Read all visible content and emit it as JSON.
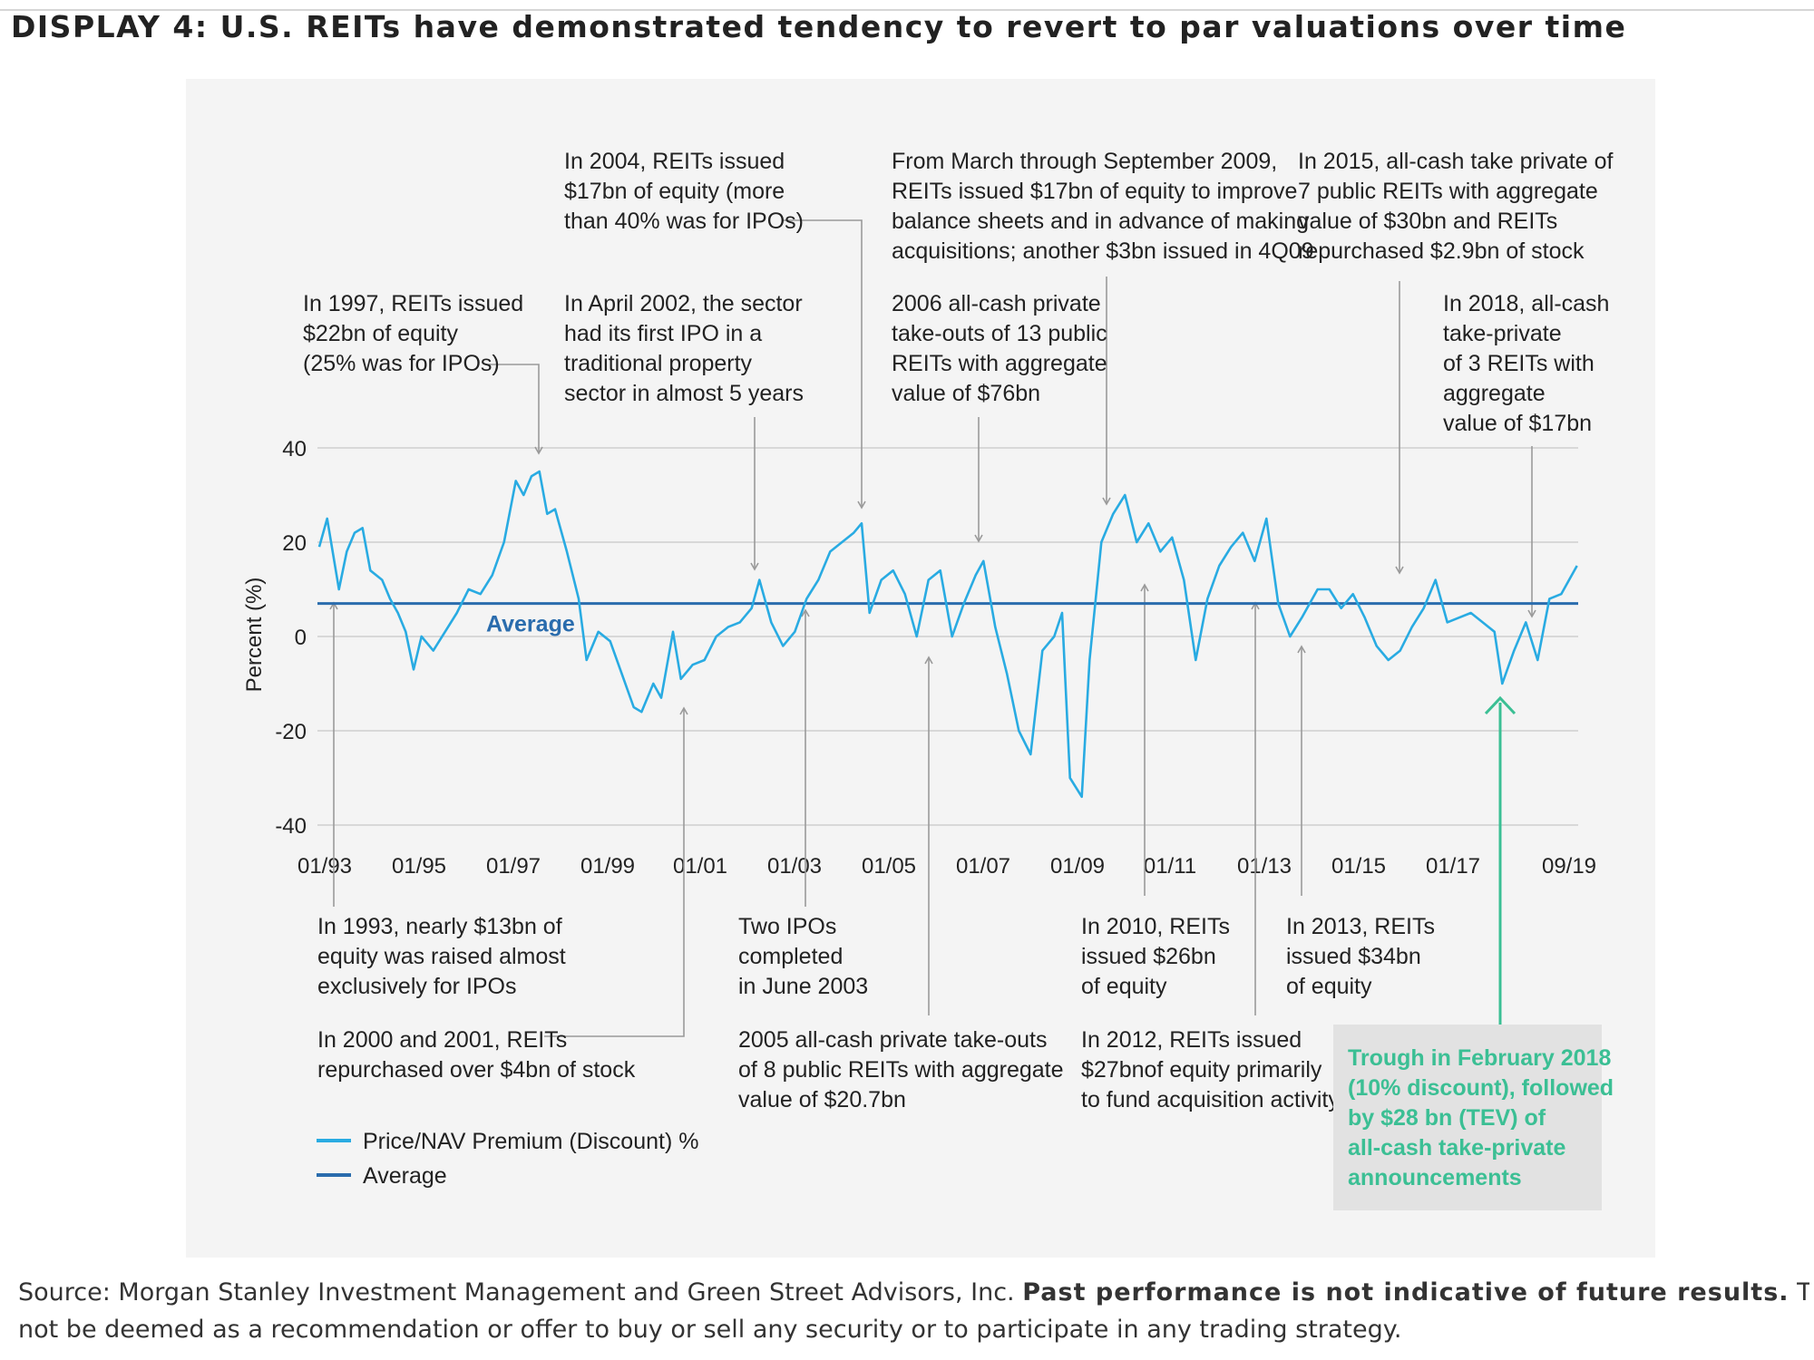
{
  "title": "DISPLAY 4: U.S. REITs have demonstrated tendency to revert to par valuations over time",
  "colors": {
    "series": "#29abe2",
    "average": "#2a6cad",
    "trough": "#3bbf94",
    "grid": "#cfcfcf",
    "panel": "#f4f4f4"
  },
  "chart_data": {
    "type": "line",
    "ylabel": "Percent (%)",
    "ylim": [
      -40,
      40
    ],
    "yticks": [
      "40",
      "20",
      "0",
      "-20",
      "-40"
    ],
    "xticks": [
      "01/93",
      "01/95",
      "01/97",
      "01/99",
      "01/01",
      "01/03",
      "01/05",
      "01/07",
      "01/09",
      "01/11",
      "01/13",
      "01/15",
      "01/17",
      "09/19"
    ],
    "average_value": 7,
    "average_label": "Average",
    "series": [
      {
        "name": "Price/NAV Premium (Discount) %",
        "color": "#29abe2",
        "points": [
          [
            "1993-01",
            19
          ],
          [
            "1993-03",
            25
          ],
          [
            "1993-06",
            10
          ],
          [
            "1993-08",
            18
          ],
          [
            "1993-10",
            22
          ],
          [
            "1993-12",
            23
          ],
          [
            "1994-02",
            14
          ],
          [
            "1994-05",
            12
          ],
          [
            "1994-07",
            8
          ],
          [
            "1994-09",
            5
          ],
          [
            "1994-11",
            1
          ],
          [
            "1995-01",
            -7
          ],
          [
            "1995-03",
            0
          ],
          [
            "1995-06",
            -3
          ],
          [
            "1995-09",
            1
          ],
          [
            "1995-12",
            5
          ],
          [
            "1996-03",
            10
          ],
          [
            "1996-06",
            9
          ],
          [
            "1996-09",
            13
          ],
          [
            "1996-12",
            20
          ],
          [
            "1997-03",
            33
          ],
          [
            "1997-05",
            30
          ],
          [
            "1997-07",
            34
          ],
          [
            "1997-09",
            35
          ],
          [
            "1997-11",
            26
          ],
          [
            "1998-01",
            27
          ],
          [
            "1998-04",
            18
          ],
          [
            "1998-07",
            8
          ],
          [
            "1998-09",
            -5
          ],
          [
            "1998-12",
            1
          ],
          [
            "1999-03",
            -1
          ],
          [
            "1999-06",
            -8
          ],
          [
            "1999-09",
            -15
          ],
          [
            "1999-11",
            -16
          ],
          [
            "2000-02",
            -10
          ],
          [
            "2000-04",
            -13
          ],
          [
            "2000-07",
            1
          ],
          [
            "2000-09",
            -9
          ],
          [
            "2000-12",
            -6
          ],
          [
            "2001-03",
            -5
          ],
          [
            "2001-06",
            0
          ],
          [
            "2001-09",
            2
          ],
          [
            "2001-12",
            3
          ],
          [
            "2002-03",
            6
          ],
          [
            "2002-05",
            12
          ],
          [
            "2002-08",
            3
          ],
          [
            "2002-11",
            -2
          ],
          [
            "2003-02",
            1
          ],
          [
            "2003-05",
            8
          ],
          [
            "2003-08",
            12
          ],
          [
            "2003-11",
            18
          ],
          [
            "2004-02",
            20
          ],
          [
            "2004-05",
            22
          ],
          [
            "2004-07",
            24
          ],
          [
            "2004-09",
            5
          ],
          [
            "2004-12",
            12
          ],
          [
            "2005-03",
            14
          ],
          [
            "2005-06",
            9
          ],
          [
            "2005-09",
            0
          ],
          [
            "2005-12",
            12
          ],
          [
            "2006-03",
            14
          ],
          [
            "2006-06",
            0
          ],
          [
            "2006-09",
            7
          ],
          [
            "2006-12",
            13
          ],
          [
            "2007-02",
            16
          ],
          [
            "2007-05",
            2
          ],
          [
            "2007-08",
            -8
          ],
          [
            "2007-11",
            -20
          ],
          [
            "2008-02",
            -25
          ],
          [
            "2008-05",
            -3
          ],
          [
            "2008-08",
            0
          ],
          [
            "2008-10",
            5
          ],
          [
            "2008-12",
            -30
          ],
          [
            "2009-03",
            -34
          ],
          [
            "2009-05",
            -5
          ],
          [
            "2009-08",
            20
          ],
          [
            "2009-11",
            26
          ],
          [
            "2010-02",
            30
          ],
          [
            "2010-05",
            20
          ],
          [
            "2010-08",
            24
          ],
          [
            "2010-11",
            18
          ],
          [
            "2011-02",
            21
          ],
          [
            "2011-05",
            12
          ],
          [
            "2011-08",
            -5
          ],
          [
            "2011-11",
            8
          ],
          [
            "2012-02",
            15
          ],
          [
            "2012-05",
            19
          ],
          [
            "2012-08",
            22
          ],
          [
            "2012-11",
            16
          ],
          [
            "2013-02",
            25
          ],
          [
            "2013-05",
            7
          ],
          [
            "2013-08",
            0
          ],
          [
            "2013-11",
            4
          ],
          [
            "2014-03",
            10
          ],
          [
            "2014-06",
            10
          ],
          [
            "2014-09",
            6
          ],
          [
            "2014-12",
            9
          ],
          [
            "2015-03",
            4
          ],
          [
            "2015-06",
            -2
          ],
          [
            "2015-09",
            -5
          ],
          [
            "2015-12",
            -3
          ],
          [
            "2016-03",
            2
          ],
          [
            "2016-06",
            6
          ],
          [
            "2016-09",
            12
          ],
          [
            "2016-12",
            3
          ],
          [
            "2017-03",
            4
          ],
          [
            "2017-06",
            5
          ],
          [
            "2017-09",
            3
          ],
          [
            "2017-12",
            1
          ],
          [
            "2018-02",
            -10
          ],
          [
            "2018-05",
            -3
          ],
          [
            "2018-08",
            3
          ],
          [
            "2018-11",
            -5
          ],
          [
            "2019-02",
            8
          ],
          [
            "2019-05",
            9
          ],
          [
            "2019-09",
            15
          ]
        ]
      },
      {
        "name": "Average",
        "color": "#2a6cad",
        "value": 7
      }
    ]
  },
  "notes": [
    [
      "In 2004, REITs issued",
      "$17bn of equity (more",
      "than 40% was for IPOs)"
    ],
    [
      "From March through September 2009,",
      "REITs issued $17bn of equity to improve",
      "balance sheets and in advance of making",
      "acquisitions; another $3bn issued in 4Q09"
    ],
    [
      "In 2015, all-cash take private of",
      "7 public REITs with aggregate",
      "value of $30bn and REITs",
      "repurchased $2.9bn of stock"
    ],
    [
      "In 1997, REITs issued",
      "$22bn of equity",
      "(25% was for IPOs)"
    ],
    [
      "In April 2002, the sector",
      "had its first IPO in a",
      "traditional property",
      "sector in almost 5 years"
    ],
    [
      "2006 all-cash private",
      "take-outs of 13 public",
      "REITs with aggregate",
      "value of $76bn"
    ],
    [
      "In 2018, all-cash",
      "take-private",
      "of 3 REITs with",
      "aggregate",
      "value of $17bn"
    ],
    [
      "In 1993, nearly $13bn of",
      "equity was raised almost",
      "exclusively for IPOs"
    ],
    [
      "Two IPOs",
      "completed",
      "in June 2003"
    ],
    [
      "In 2010, REITs",
      "issued $26bn",
      "of equity"
    ],
    [
      "In 2013, REITs",
      "issued $34bn",
      "of equity"
    ],
    [
      "In 2000 and 2001, REITs",
      "repurchased over $4bn of stock"
    ],
    [
      "2005 all-cash private take-outs",
      "of 8 public REITs with aggregate",
      "value of $20.7bn"
    ],
    [
      "In 2012, REITs issued",
      "$27bnof equity primarily",
      "to fund acquisition activity"
    ]
  ],
  "trough_note": [
    "Trough in February 2018",
    "(10% discount), followed",
    "by $28 bn (TEV) of",
    "all-cash take-private",
    "announcements"
  ],
  "legend": [
    "Price/NAV Premium (Discount) %",
    "Average"
  ],
  "footer": {
    "source": "Source: Morgan Stanley Investment Management and Green Street Advisors, Inc. ",
    "bold": "Past performance is not indicative of future results.",
    "rest": " This should",
    "line2": "not be deemed as a recommendation or offer to buy or sell any security or to participate in any trading strategy."
  }
}
